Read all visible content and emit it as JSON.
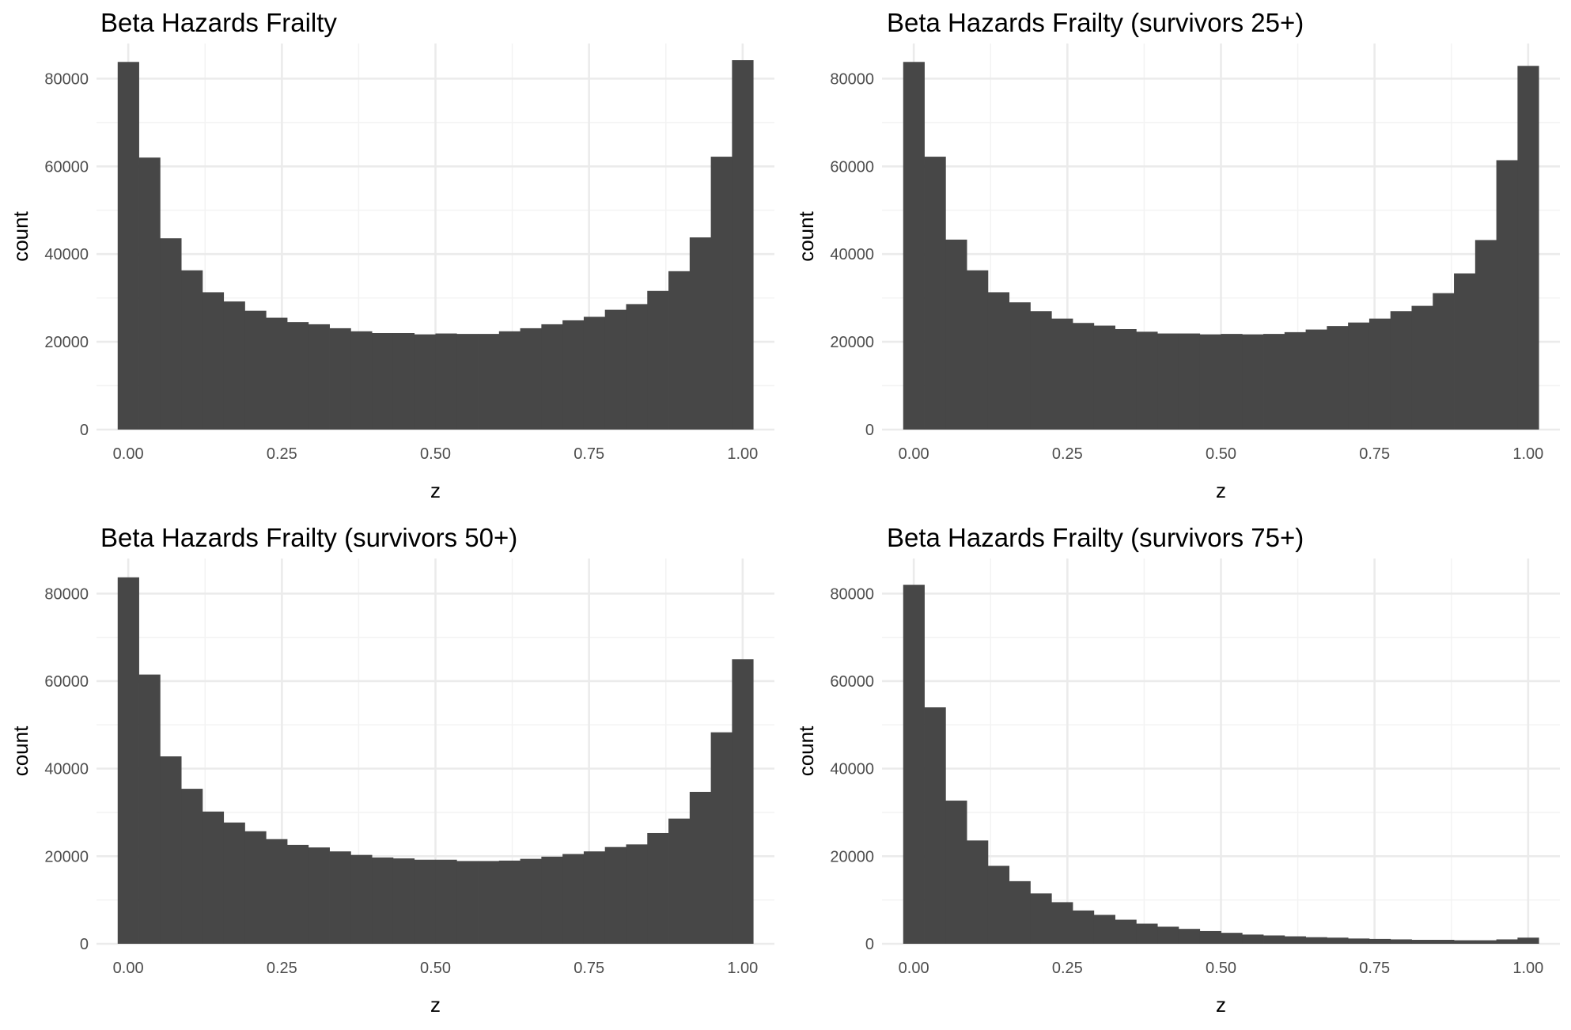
{
  "chart_data": [
    {
      "type": "bar",
      "title": "Beta Hazards Frailty",
      "xlabel": "z",
      "ylabel": "count",
      "xlim": [
        -0.0517,
        1.0517
      ],
      "ylim": [
        0,
        88000
      ],
      "x_ticks": [
        0.0,
        0.25,
        0.5,
        0.75,
        1.0
      ],
      "x_tick_labels": [
        "0.00",
        "0.25",
        "0.50",
        "0.75",
        "1.00"
      ],
      "y_ticks": [
        0,
        20000,
        40000,
        60000,
        80000
      ],
      "y_tick_labels": [
        "0",
        "20000",
        "40000",
        "60000",
        "80000"
      ],
      "bin_width": 0.03448,
      "bin_start": -0.01724,
      "grid": true,
      "values": [
        83800,
        62000,
        43600,
        36300,
        31300,
        29200,
        27100,
        25500,
        24500,
        24000,
        23100,
        22400,
        22000,
        22000,
        21700,
        21900,
        21800,
        21800,
        22400,
        23100,
        24000,
        24900,
        25700,
        27300,
        28600,
        31600,
        36100,
        43800,
        62200,
        84200
      ]
    },
    {
      "type": "bar",
      "title": "Beta Hazards Frailty (survivors 25+)",
      "xlabel": "z",
      "ylabel": "count",
      "xlim": [
        -0.0517,
        1.0517
      ],
      "ylim": [
        0,
        88000
      ],
      "x_ticks": [
        0.0,
        0.25,
        0.5,
        0.75,
        1.0
      ],
      "x_tick_labels": [
        "0.00",
        "0.25",
        "0.50",
        "0.75",
        "1.00"
      ],
      "y_ticks": [
        0,
        20000,
        40000,
        60000,
        80000
      ],
      "y_tick_labels": [
        "0",
        "20000",
        "40000",
        "60000",
        "80000"
      ],
      "bin_width": 0.03448,
      "bin_start": -0.01724,
      "grid": true,
      "values": [
        83800,
        62200,
        43300,
        36300,
        31300,
        29000,
        27000,
        25300,
        24300,
        23700,
        22900,
        22300,
        21900,
        21900,
        21700,
        21800,
        21700,
        21800,
        22200,
        22800,
        23600,
        24400,
        25300,
        27000,
        28200,
        31100,
        35600,
        43200,
        61400,
        82900
      ]
    },
    {
      "type": "bar",
      "title": "Beta Hazards Frailty (survivors 50+)",
      "xlabel": "z",
      "ylabel": "count",
      "xlim": [
        -0.0517,
        1.0517
      ],
      "ylim": [
        0,
        88000
      ],
      "x_ticks": [
        0.0,
        0.25,
        0.5,
        0.75,
        1.0
      ],
      "x_tick_labels": [
        "0.00",
        "0.25",
        "0.50",
        "0.75",
        "1.00"
      ],
      "y_ticks": [
        0,
        20000,
        40000,
        60000,
        80000
      ],
      "y_tick_labels": [
        "0",
        "20000",
        "40000",
        "60000",
        "80000"
      ],
      "bin_width": 0.03448,
      "bin_start": -0.01724,
      "grid": true,
      "values": [
        83700,
        61500,
        42800,
        35400,
        30200,
        27700,
        25700,
        23900,
        22600,
        22000,
        21100,
        20300,
        19700,
        19500,
        19200,
        19200,
        18900,
        18900,
        19000,
        19400,
        19900,
        20500,
        21100,
        22100,
        22700,
        25300,
        28600,
        34700,
        48300,
        65000
      ]
    },
    {
      "type": "bar",
      "title": "Beta Hazards Frailty (survivors 75+)",
      "xlabel": "z",
      "ylabel": "count",
      "xlim": [
        -0.0517,
        1.0517
      ],
      "ylim": [
        0,
        88000
      ],
      "x_ticks": [
        0.0,
        0.25,
        0.5,
        0.75,
        1.0
      ],
      "x_tick_labels": [
        "0.00",
        "0.25",
        "0.50",
        "0.75",
        "1.00"
      ],
      "y_ticks": [
        0,
        20000,
        40000,
        60000,
        80000
      ],
      "y_tick_labels": [
        "0",
        "20000",
        "40000",
        "60000",
        "80000"
      ],
      "bin_width": 0.03448,
      "bin_start": -0.01724,
      "grid": true,
      "values": [
        82000,
        54000,
        32700,
        23600,
        17800,
        14300,
        11500,
        9500,
        7600,
        6600,
        5500,
        4600,
        3900,
        3400,
        2900,
        2500,
        2100,
        1900,
        1700,
        1500,
        1400,
        1200,
        1100,
        1000,
        900,
        900,
        800,
        800,
        1000,
        1400
      ]
    }
  ]
}
